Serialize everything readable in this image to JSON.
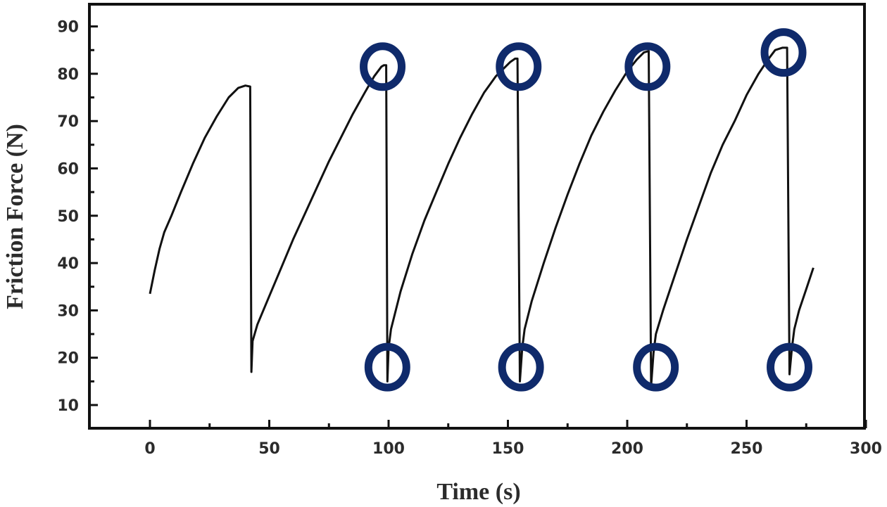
{
  "chart_data": {
    "type": "line",
    "xlabel": "Time (s)",
    "ylabel": "Friction Force (N)",
    "xlim": [
      -25,
      300
    ],
    "ylim": [
      5,
      95
    ],
    "xticks": [
      0,
      50,
      100,
      150,
      200,
      250,
      300
    ],
    "yticks": [
      10,
      20,
      30,
      40,
      50,
      60,
      70,
      80,
      90
    ],
    "grid": false,
    "legend": "none",
    "colors": {
      "line": "#111111",
      "marker": "#0f2a6b",
      "axis": "#111111"
    },
    "series": [
      {
        "x": [
          0,
          2,
          4,
          6,
          9,
          13,
          18,
          23,
          28,
          33,
          37,
          40,
          42,
          42.5,
          43,
          45,
          50,
          55,
          60,
          65,
          70,
          75,
          80,
          85,
          90,
          94,
          97,
          98,
          99,
          99.5,
          100,
          101,
          105,
          110,
          115,
          120,
          125,
          130,
          135,
          140,
          145,
          149,
          151,
          153,
          154,
          155,
          156,
          157,
          160,
          165,
          170,
          175,
          180,
          185,
          190,
          195,
          200,
          204,
          207,
          209,
          210,
          211,
          212,
          215,
          220,
          225,
          230,
          235,
          240,
          245,
          250,
          255,
          259,
          262,
          265,
          267,
          268,
          269,
          270,
          272,
          275,
          278
        ],
        "y": [
          33.5,
          38.5,
          43,
          46.5,
          50,
          55,
          61,
          66.5,
          71,
          75,
          77,
          77.5,
          77.3,
          17,
          23.5,
          27,
          33,
          39,
          45,
          50.5,
          56,
          61.5,
          66.5,
          71.5,
          76,
          79.5,
          81.5,
          81.8,
          81.8,
          15,
          22,
          26,
          34,
          42,
          49,
          55,
          61,
          66.5,
          71.5,
          76,
          79.5,
          81.5,
          82.5,
          83.2,
          83.2,
          15,
          22,
          26,
          32,
          40,
          47.5,
          54.5,
          61,
          67,
          72,
          76.5,
          80.5,
          83,
          84.5,
          84.8,
          14,
          21,
          25,
          30,
          37.5,
          45,
          52,
          59,
          65,
          70,
          75.5,
          80,
          83,
          85,
          85.5,
          85.5,
          16.5,
          22,
          26,
          30,
          34.5,
          39
        ]
      }
    ],
    "circled_points": [
      {
        "x": 97.5,
        "y": 81.5
      },
      {
        "x": 154.5,
        "y": 81.5
      },
      {
        "x": 208.5,
        "y": 81.5
      },
      {
        "x": 265.5,
        "y": 84.5
      },
      {
        "x": 99.5,
        "y": 18
      },
      {
        "x": 155.5,
        "y": 18
      },
      {
        "x": 212,
        "y": 18
      },
      {
        "x": 268,
        "y": 18
      }
    ]
  }
}
